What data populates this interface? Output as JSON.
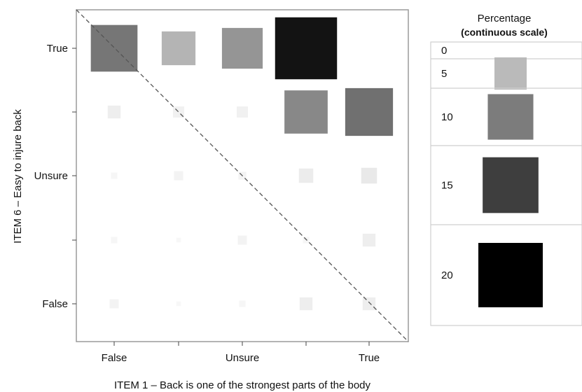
{
  "chart_data": {
    "type": "heatmap",
    "xlabel": "ITEM 1 – Back is one of the strongest parts of the body",
    "ylabel": "ITEM 6 – Easy to injure back",
    "x_levels": [
      "False",
      "",
      "Unsure",
      "",
      "True"
    ],
    "y_levels": [
      "False",
      "",
      "Unsure",
      "",
      "True"
    ],
    "x_tick_labels": [
      "False",
      "Unsure",
      "True"
    ],
    "y_tick_labels": [
      "False",
      "Unsure",
      "True"
    ],
    "value_range": [
      0,
      20
    ],
    "cells": [
      {
        "x": 1,
        "y": 5,
        "value": 10.5
      },
      {
        "x": 2,
        "y": 5,
        "value": 5.5
      },
      {
        "x": 3,
        "y": 5,
        "value": 8.0
      },
      {
        "x": 4,
        "y": 5,
        "value": 18.5
      },
      {
        "x": 1,
        "y": 4,
        "value": 0.8
      },
      {
        "x": 2,
        "y": 4,
        "value": 0.6
      },
      {
        "x": 3,
        "y": 4,
        "value": 0.6
      },
      {
        "x": 4,
        "y": 4,
        "value": 9.0
      },
      {
        "x": 5,
        "y": 4,
        "value": 11.0
      },
      {
        "x": 1,
        "y": 3,
        "value": 0.2
      },
      {
        "x": 2,
        "y": 3,
        "value": 0.4
      },
      {
        "x": 3,
        "y": 3,
        "value": 0.3
      },
      {
        "x": 4,
        "y": 3,
        "value": 1.0
      },
      {
        "x": 5,
        "y": 3,
        "value": 1.2
      },
      {
        "x": 1,
        "y": 2,
        "value": 0.2
      },
      {
        "x": 2,
        "y": 2,
        "value": 0.1
      },
      {
        "x": 3,
        "y": 2,
        "value": 0.4
      },
      {
        "x": 4,
        "y": 2,
        "value": 0.2
      },
      {
        "x": 5,
        "y": 2,
        "value": 0.8
      },
      {
        "x": 1,
        "y": 1,
        "value": 0.4
      },
      {
        "x": 2,
        "y": 1,
        "value": 0.1
      },
      {
        "x": 3,
        "y": 1,
        "value": 0.2
      },
      {
        "x": 4,
        "y": 1,
        "value": 0.8
      },
      {
        "x": 5,
        "y": 1,
        "value": 0.8
      }
    ],
    "diagonal_reference_line": "dashed",
    "legend": {
      "title": "Percentage",
      "subtitle": "(continuous scale)",
      "placement": "right",
      "entries": [
        {
          "label": "0",
          "value": 0
        },
        {
          "label": "5",
          "value": 5
        },
        {
          "label": "10",
          "value": 10
        },
        {
          "label": "15",
          "value": 15
        },
        {
          "label": "20",
          "value": 20
        }
      ]
    }
  }
}
